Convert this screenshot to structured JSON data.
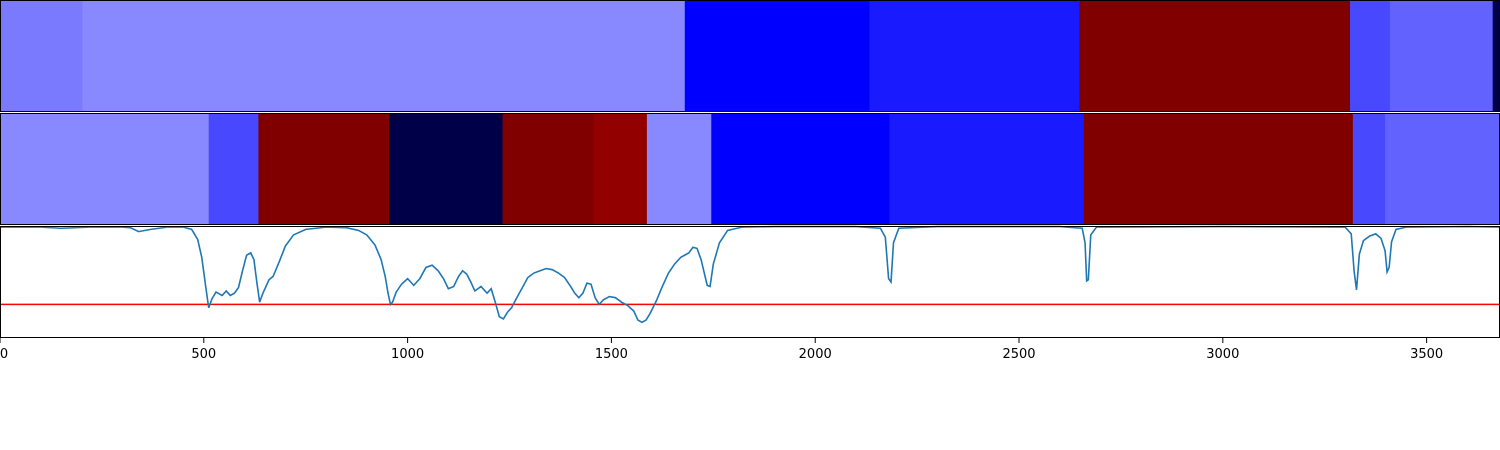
{
  "chart_data": {
    "type": "heatmap",
    "xlim": [
      0,
      3680
    ],
    "x_ticks": [
      0,
      500,
      1000,
      1500,
      2000,
      2500,
      3000,
      3500
    ],
    "x_tick_labels": [
      "0",
      "500",
      "1000",
      "1500",
      "2000",
      "2500",
      "3000",
      "3500"
    ],
    "heatmap_rows": [
      {
        "segments": [
          {
            "start": 0,
            "end": 202,
            "color": "#7a7aff"
          },
          {
            "start": 202,
            "end": 1680,
            "color": "#8888ff"
          },
          {
            "start": 1680,
            "end": 2133,
            "color": "#0000ff"
          },
          {
            "start": 2133,
            "end": 2648,
            "color": "#1a1aff"
          },
          {
            "start": 2648,
            "end": 3312,
            "color": "#800000"
          },
          {
            "start": 3312,
            "end": 3410,
            "color": "#4848ff"
          },
          {
            "start": 3410,
            "end": 3662,
            "color": "#6262ff"
          },
          {
            "start": 3662,
            "end": 3680,
            "color": "#00004a"
          }
        ]
      },
      {
        "segments": [
          {
            "start": 0,
            "end": 512,
            "color": "#8888ff"
          },
          {
            "start": 512,
            "end": 634,
            "color": "#4848ff"
          },
          {
            "start": 634,
            "end": 955,
            "color": "#800000"
          },
          {
            "start": 955,
            "end": 1233,
            "color": "#000048"
          },
          {
            "start": 1233,
            "end": 1456,
            "color": "#800000"
          },
          {
            "start": 1456,
            "end": 1587,
            "color": "#920000"
          },
          {
            "start": 1587,
            "end": 1745,
            "color": "#8888ff"
          },
          {
            "start": 1745,
            "end": 2182,
            "color": "#0000ff"
          },
          {
            "start": 2182,
            "end": 2659,
            "color": "#1a1aff"
          },
          {
            "start": 2659,
            "end": 3319,
            "color": "#800000"
          },
          {
            "start": 3319,
            "end": 3398,
            "color": "#4848ff"
          },
          {
            "start": 3398,
            "end": 3680,
            "color": "#6262ff"
          }
        ]
      }
    ],
    "spectrum": {
      "ylim": [
        0,
        1
      ],
      "color": "#1f77b4",
      "points": [
        [
          0,
          0.99
        ],
        [
          100,
          0.99
        ],
        [
          150,
          0.98
        ],
        [
          220,
          0.99
        ],
        [
          300,
          0.99
        ],
        [
          320,
          0.985
        ],
        [
          340,
          0.95
        ],
        [
          370,
          0.97
        ],
        [
          410,
          0.99
        ],
        [
          450,
          0.99
        ],
        [
          470,
          0.97
        ],
        [
          485,
          0.88
        ],
        [
          495,
          0.72
        ],
        [
          505,
          0.45
        ],
        [
          512,
          0.27
        ],
        [
          520,
          0.35
        ],
        [
          530,
          0.41
        ],
        [
          545,
          0.38
        ],
        [
          555,
          0.42
        ],
        [
          565,
          0.38
        ],
        [
          575,
          0.4
        ],
        [
          585,
          0.45
        ],
        [
          595,
          0.6
        ],
        [
          605,
          0.74
        ],
        [
          615,
          0.76
        ],
        [
          623,
          0.7
        ],
        [
          630,
          0.5
        ],
        [
          637,
          0.32
        ],
        [
          645,
          0.4
        ],
        [
          660,
          0.52
        ],
        [
          670,
          0.55
        ],
        [
          685,
          0.68
        ],
        [
          700,
          0.82
        ],
        [
          720,
          0.92
        ],
        [
          750,
          0.97
        ],
        [
          800,
          0.99
        ],
        [
          850,
          0.985
        ],
        [
          880,
          0.96
        ],
        [
          900,
          0.92
        ],
        [
          920,
          0.83
        ],
        [
          935,
          0.7
        ],
        [
          945,
          0.55
        ],
        [
          952,
          0.4
        ],
        [
          958,
          0.3
        ],
        [
          963,
          0.32
        ],
        [
          972,
          0.41
        ],
        [
          985,
          0.48
        ],
        [
          1000,
          0.53
        ],
        [
          1015,
          0.47
        ],
        [
          1030,
          0.53
        ],
        [
          1045,
          0.63
        ],
        [
          1060,
          0.65
        ],
        [
          1075,
          0.6
        ],
        [
          1088,
          0.53
        ],
        [
          1100,
          0.44
        ],
        [
          1113,
          0.46
        ],
        [
          1125,
          0.55
        ],
        [
          1135,
          0.6
        ],
        [
          1145,
          0.57
        ],
        [
          1155,
          0.5
        ],
        [
          1165,
          0.42
        ],
        [
          1180,
          0.46
        ],
        [
          1195,
          0.4
        ],
        [
          1205,
          0.44
        ],
        [
          1215,
          0.32
        ],
        [
          1225,
          0.19
        ],
        [
          1235,
          0.17
        ],
        [
          1245,
          0.23
        ],
        [
          1255,
          0.27
        ],
        [
          1265,
          0.34
        ],
        [
          1280,
          0.44
        ],
        [
          1295,
          0.54
        ],
        [
          1310,
          0.58
        ],
        [
          1325,
          0.6
        ],
        [
          1340,
          0.62
        ],
        [
          1355,
          0.61
        ],
        [
          1370,
          0.58
        ],
        [
          1385,
          0.54
        ],
        [
          1400,
          0.46
        ],
        [
          1410,
          0.4
        ],
        [
          1420,
          0.36
        ],
        [
          1430,
          0.4
        ],
        [
          1440,
          0.49
        ],
        [
          1450,
          0.48
        ],
        [
          1460,
          0.36
        ],
        [
          1470,
          0.3
        ],
        [
          1480,
          0.34
        ],
        [
          1495,
          0.37
        ],
        [
          1510,
          0.36
        ],
        [
          1525,
          0.32
        ],
        [
          1540,
          0.29
        ],
        [
          1555,
          0.24
        ],
        [
          1565,
          0.16
        ],
        [
          1575,
          0.14
        ],
        [
          1585,
          0.16
        ],
        [
          1595,
          0.22
        ],
        [
          1610,
          0.33
        ],
        [
          1625,
          0.46
        ],
        [
          1640,
          0.58
        ],
        [
          1655,
          0.66
        ],
        [
          1670,
          0.72
        ],
        [
          1680,
          0.74
        ],
        [
          1690,
          0.76
        ],
        [
          1700,
          0.81
        ],
        [
          1710,
          0.8
        ],
        [
          1720,
          0.7
        ],
        [
          1735,
          0.47
        ],
        [
          1742,
          0.46
        ],
        [
          1750,
          0.66
        ],
        [
          1765,
          0.85
        ],
        [
          1785,
          0.96
        ],
        [
          1820,
          0.99
        ],
        [
          1900,
          0.995
        ],
        [
          2100,
          0.995
        ],
        [
          2160,
          0.98
        ],
        [
          2172,
          0.9
        ],
        [
          2180,
          0.53
        ],
        [
          2186,
          0.5
        ],
        [
          2192,
          0.85
        ],
        [
          2205,
          0.98
        ],
        [
          2300,
          0.995
        ],
        [
          2600,
          0.995
        ],
        [
          2655,
          0.98
        ],
        [
          2662,
          0.85
        ],
        [
          2666,
          0.51
        ],
        [
          2670,
          0.52
        ],
        [
          2676,
          0.92
        ],
        [
          2690,
          0.99
        ],
        [
          3000,
          0.995
        ],
        [
          3300,
          0.99
        ],
        [
          3315,
          0.93
        ],
        [
          3322,
          0.6
        ],
        [
          3328,
          0.43
        ],
        [
          3335,
          0.75
        ],
        [
          3345,
          0.87
        ],
        [
          3360,
          0.91
        ],
        [
          3375,
          0.93
        ],
        [
          3388,
          0.89
        ],
        [
          3398,
          0.78
        ],
        [
          3403,
          0.59
        ],
        [
          3408,
          0.63
        ],
        [
          3414,
          0.86
        ],
        [
          3425,
          0.97
        ],
        [
          3450,
          0.99
        ],
        [
          3600,
          0.995
        ],
        [
          3680,
          0.99
        ]
      ]
    },
    "threshold": {
      "y": 0.3,
      "color": "#ff0000"
    }
  }
}
